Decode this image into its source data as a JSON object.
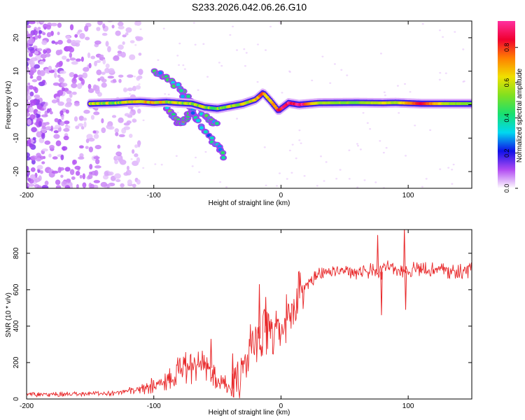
{
  "title": "S233.2026.042.06.26.G10",
  "chart_data": [
    {
      "type": "heatmap",
      "xlabel": "Height of straight line (km)",
      "ylabel": "Frequency (Hz)",
      "xlim": [
        -200,
        150
      ],
      "ylim": [
        -25,
        25
      ],
      "xticks": [
        -200,
        -100,
        0,
        100
      ],
      "xtick_labels": [
        "-200",
        "-100",
        "0",
        "100"
      ],
      "yticks": [
        -20,
        -10,
        0,
        10,
        20
      ],
      "ytick_labels": [
        "-20",
        "-10",
        "0",
        "10",
        "20"
      ],
      "colorbar": {
        "label": "Normalized spectral amplitude",
        "range": [
          0,
          0.95
        ],
        "ticks": [
          0,
          0.2,
          0.4,
          0.6,
          0.8
        ],
        "tick_labels": [
          "0.0",
          "0.2",
          "0.4",
          "0.6",
          "0.8"
        ],
        "colors": [
          "#ffffff",
          "#b14bf2",
          "#1010e8",
          "#00d8f0",
          "#18e070",
          "#80e020",
          "#f0e000",
          "#ff8000",
          "#f00030",
          "#ff30a0"
        ]
      },
      "noise_region_km": [
        -200,
        -120
      ],
      "trace": [
        {
          "x": -150,
          "y": 0.3,
          "a": 0.55
        },
        {
          "x": -140,
          "y": 0.4,
          "a": 0.5
        },
        {
          "x": -130,
          "y": 0.5,
          "a": 0.5
        },
        {
          "x": -120,
          "y": 0.8,
          "a": 0.55
        },
        {
          "x": -110,
          "y": 0.9,
          "a": 0.6
        },
        {
          "x": -100,
          "y": 0.6,
          "a": 0.65
        },
        {
          "x": -90,
          "y": 0.8,
          "a": 0.55
        },
        {
          "x": -80,
          "y": 0.5,
          "a": 0.5
        },
        {
          "x": -70,
          "y": 0.3,
          "a": 0.5
        },
        {
          "x": -60,
          "y": -0.8,
          "a": 0.5
        },
        {
          "x": -50,
          "y": -1.2,
          "a": 0.45
        },
        {
          "x": -40,
          "y": -0.5,
          "a": 0.5
        },
        {
          "x": -30,
          "y": 0.2,
          "a": 0.55
        },
        {
          "x": -20,
          "y": 1.5,
          "a": 0.6
        },
        {
          "x": -14,
          "y": 3.5,
          "a": 0.7
        },
        {
          "x": -8,
          "y": 1.0,
          "a": 0.6
        },
        {
          "x": -2,
          "y": -1.8,
          "a": 0.8
        },
        {
          "x": 6,
          "y": 0.5,
          "a": 0.85
        },
        {
          "x": 14,
          "y": 0.0,
          "a": 0.9
        },
        {
          "x": 30,
          "y": 0.5,
          "a": 0.55
        },
        {
          "x": 60,
          "y": 0.6,
          "a": 0.5
        },
        {
          "x": 80,
          "y": 0.5,
          "a": 0.6
        },
        {
          "x": 90,
          "y": 0.6,
          "a": 0.55
        },
        {
          "x": 110,
          "y": 0.3,
          "a": 0.85
        },
        {
          "x": 130,
          "y": 0.3,
          "a": 0.55
        },
        {
          "x": 150,
          "y": 0.3,
          "a": 0.5
        }
      ],
      "branches": [
        {
          "name": "upper branch",
          "x": [
            -100,
            -90,
            -80,
            -70,
            -60,
            -55,
            -50
          ],
          "y": [
            10,
            8,
            5,
            1,
            -3,
            -5,
            -6
          ],
          "a": 0.45
        },
        {
          "name": "lower branch",
          "x": [
            -90,
            -85,
            -80,
            -75,
            -70,
            -65
          ],
          "y": [
            -1,
            -3,
            -6,
            -4,
            -2,
            -5
          ],
          "a": 0.5
        },
        {
          "name": "steep branch",
          "x": [
            -80,
            -70,
            -60,
            -50,
            -45
          ],
          "y": [
            5,
            -2,
            -8,
            -12,
            -16
          ],
          "a": 0.4
        }
      ]
    },
    {
      "type": "line",
      "xlabel": "Height of straight line (km)",
      "ylabel": "SNR (10 * v/v)",
      "xlim": [
        -200,
        150
      ],
      "ylim": [
        0,
        930
      ],
      "xticks": [
        -200,
        -100,
        0,
        100
      ],
      "xtick_labels": [
        "-200",
        "-100",
        "0",
        "100"
      ],
      "yticks": [
        0,
        200,
        400,
        600,
        800
      ],
      "ytick_labels": [
        "0",
        "200",
        "400",
        "600",
        "800"
      ],
      "color": "#e8282a",
      "series": [
        {
          "name": "SNR",
          "x": [
            -200,
            -180,
            -160,
            -140,
            -130,
            -120,
            -110,
            -100,
            -90,
            -80,
            -75,
            -70,
            -65,
            -60,
            -55,
            -50,
            -45,
            -40,
            -35,
            -32,
            -30,
            -25,
            -20,
            -15,
            -10,
            -5,
            0,
            5,
            10,
            15,
            20,
            25,
            30,
            40,
            50,
            60,
            70,
            75,
            80,
            85,
            90,
            95,
            100,
            110,
            120,
            130,
            140,
            150
          ],
          "y": [
            25,
            25,
            28,
            30,
            35,
            45,
            55,
            80,
            110,
            150,
            180,
            200,
            220,
            210,
            170,
            120,
            90,
            60,
            50,
            100,
            180,
            260,
            320,
            340,
            380,
            360,
            380,
            460,
            520,
            580,
            620,
            650,
            680,
            700,
            705,
            700,
            705,
            690,
            700,
            720,
            700,
            690,
            710,
            705,
            710,
            705,
            700,
            705
          ]
        }
      ],
      "spikes": [
        {
          "x": -55,
          "y": 330
        },
        {
          "x": -38,
          "y": 250
        },
        {
          "x": -17,
          "y": 630
        },
        {
          "x": -12,
          "y": 560
        },
        {
          "x": 76,
          "y": 900
        },
        {
          "x": 79,
          "y": 460
        },
        {
          "x": 97,
          "y": 940
        },
        {
          "x": 98,
          "y": 490
        }
      ]
    }
  ]
}
